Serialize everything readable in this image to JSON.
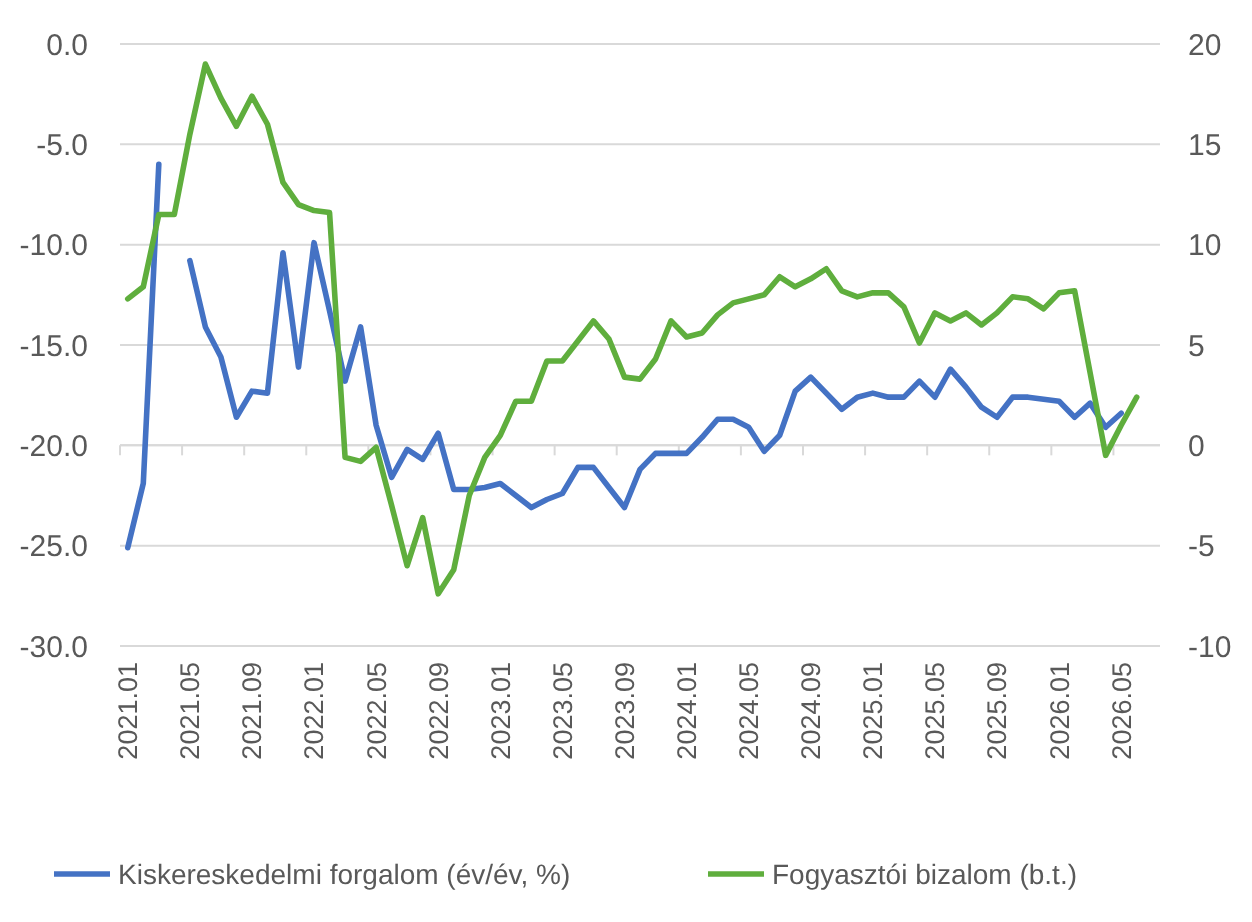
{
  "chart_data": {
    "type": "line",
    "categories": [
      "2021.01",
      null,
      null,
      null,
      "2021.05",
      null,
      null,
      null,
      "2021.09",
      null,
      null,
      null,
      "2022.01",
      null,
      null,
      null,
      "2022.05",
      null,
      null,
      null,
      "2022.09",
      null,
      null,
      null,
      "2023.01",
      null,
      null,
      null,
      "2023.05",
      null,
      null,
      null,
      "2023.09",
      null,
      null,
      null,
      "2024.01",
      null,
      null,
      null,
      "2024.05",
      null,
      null,
      null,
      "2024.09",
      null,
      null,
      null,
      "2025.01",
      null,
      null,
      null,
      "2025.05",
      null,
      null,
      null,
      "2025.09",
      null,
      null,
      null,
      "2026.01",
      null,
      null,
      null,
      "2026.05",
      null,
      null
    ],
    "series": [
      {
        "name": "Kiskereskedelmi forgalom (év/év, %)",
        "color": "#4472c4",
        "axis": "y",
        "values": [
          -25.1,
          -21.9,
          -6.0,
          null,
          -10.8,
          -14.1,
          -15.6,
          -18.6,
          -17.3,
          -17.4,
          -10.4,
          -16.1,
          -9.9,
          -13.3,
          -16.8,
          -14.1,
          -19.0,
          -21.6,
          -20.2,
          -20.7,
          -19.4,
          -22.2,
          -22.2,
          -22.1,
          -21.9,
          -22.5,
          -23.1,
          -22.7,
          -22.4,
          -21.1,
          -21.1,
          -22.1,
          -23.1,
          -21.2,
          -20.4,
          -20.4,
          -20.4,
          -19.6,
          -18.7,
          -18.7,
          -19.1,
          -20.3,
          -19.5,
          -17.3,
          -16.6,
          -17.4,
          -18.2,
          -17.6,
          -17.4,
          -17.6,
          -17.6,
          -16.8,
          -17.6,
          -16.2,
          -17.1,
          -18.1,
          -18.6,
          -17.6,
          -17.6,
          -17.7,
          -17.8,
          -18.6,
          -17.9,
          -19.1,
          -18.4,
          null,
          null
        ]
      },
      {
        "name": "Fogyasztói bizalom (b.t.)",
        "color": "#5fae3d",
        "axis": "y2",
        "values": [
          7.3,
          7.9,
          11.5,
          11.5,
          15.5,
          19.0,
          17.3,
          15.9,
          17.4,
          16.0,
          13.1,
          12.0,
          11.7,
          11.6,
          -0.6,
          -0.8,
          -0.1,
          -3.0,
          -6.0,
          -3.6,
          -7.4,
          -6.2,
          -2.5,
          -0.6,
          0.5,
          2.2,
          2.2,
          4.2,
          4.2,
          5.2,
          6.2,
          5.3,
          3.4,
          3.3,
          4.3,
          6.2,
          5.4,
          5.6,
          6.5,
          7.1,
          7.3,
          7.5,
          8.4,
          7.9,
          8.3,
          8.8,
          7.7,
          7.4,
          7.6,
          7.6,
          6.9,
          5.1,
          6.6,
          6.2,
          6.6,
          6.0,
          6.6,
          7.4,
          7.3,
          6.8,
          7.6,
          7.7,
          3.6,
          -0.5,
          1.0,
          2.4,
          null
        ]
      }
    ],
    "ylim": [
      -30,
      0
    ],
    "yticks": [
      {
        "value": -30,
        "label": "-30.0"
      },
      {
        "value": -25,
        "label": "-25.0"
      },
      {
        "value": -20,
        "label": "-20.0"
      },
      {
        "value": -15,
        "label": "-15.0"
      },
      {
        "value": -10,
        "label": "-10.0"
      },
      {
        "value": -5,
        "label": "-5.0"
      },
      {
        "value": 0,
        "label": "0.0"
      }
    ],
    "y2lim": [
      -10,
      20
    ],
    "y2ticks": [
      -10,
      -5,
      0,
      5,
      10,
      15,
      20
    ],
    "grid": "y",
    "legend": "bottom",
    "marker": "none",
    "line_style": "solid"
  }
}
